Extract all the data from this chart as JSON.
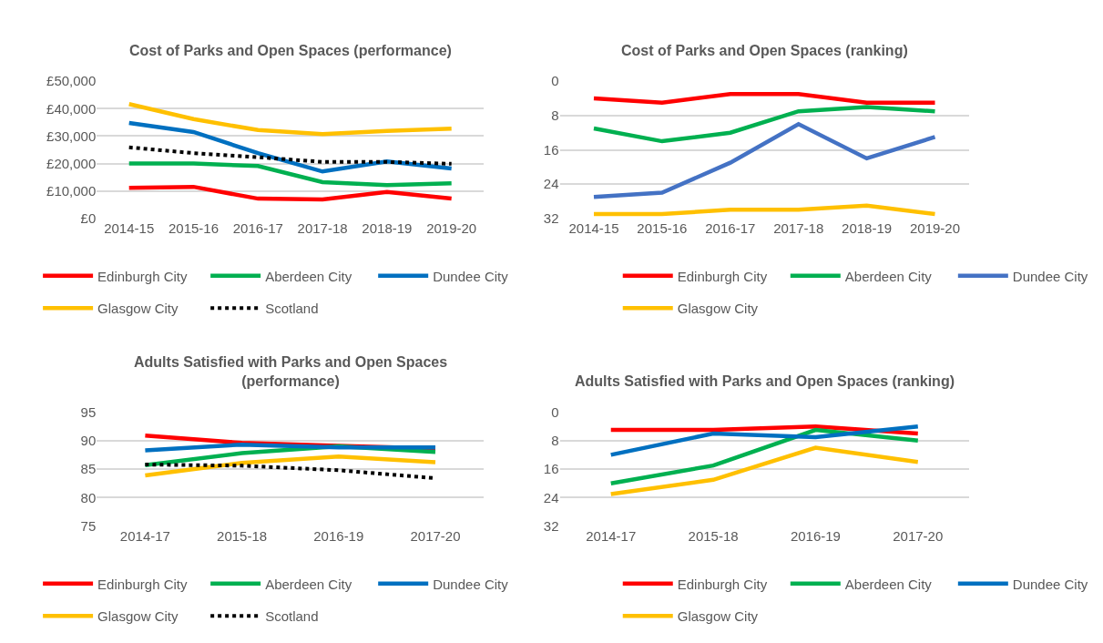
{
  "chart_data": [
    {
      "type": "line",
      "title": "Cost of Parks and Open Spaces (performance)",
      "categories": [
        "2014-15",
        "2015-16",
        "2016-17",
        "2017-18",
        "2018-19",
        "2019-20"
      ],
      "ylim": [
        0,
        50000
      ],
      "yticks": [
        {
          "value": 0,
          "label": "£0"
        },
        {
          "value": 10000,
          "label": "£10,000"
        },
        {
          "value": 20000,
          "label": "£20,000"
        },
        {
          "value": 30000,
          "label": "£30,000"
        },
        {
          "value": 40000,
          "label": "£40,000"
        },
        {
          "value": 50000,
          "label": "£50,000"
        }
      ],
      "grid": "y",
      "legend": "bottom",
      "series": [
        {
          "name": "Edinburgh City",
          "color": "#ff0000",
          "values": [
            11100,
            11500,
            7200,
            6900,
            9600,
            7200
          ]
        },
        {
          "name": "Aberdeen City",
          "color": "#00b050",
          "values": [
            20000,
            20000,
            19100,
            13200,
            12100,
            12800
          ]
        },
        {
          "name": "Dundee City",
          "color": "#0070c0",
          "values": [
            34800,
            31500,
            23800,
            17100,
            20800,
            18200
          ]
        },
        {
          "name": "Glasgow City",
          "color": "#ffc000",
          "values": [
            41700,
            36200,
            32200,
            30700,
            31900,
            32700
          ]
        },
        {
          "name": "Scotland",
          "color": "#000000",
          "line_style": "dotted",
          "values": [
            25900,
            23800,
            22300,
            20600,
            20600,
            19900
          ]
        }
      ]
    },
    {
      "type": "line",
      "title": "Cost of Parks and Open Spaces (ranking)",
      "categories": [
        "2014-15",
        "2015-16",
        "2016-17",
        "2017-18",
        "2018-19",
        "2019-20"
      ],
      "ylim": [
        32,
        0
      ],
      "yticks": [
        0,
        8,
        16,
        24,
        32
      ],
      "grid": "y",
      "legend": "bottom",
      "series": [
        {
          "name": "Edinburgh City",
          "color": "#ff0000",
          "values": [
            4,
            5,
            3,
            3,
            5,
            5
          ]
        },
        {
          "name": "Aberdeen City",
          "color": "#00b050",
          "values": [
            11,
            14,
            12,
            7,
            6,
            7
          ]
        },
        {
          "name": "Dundee City",
          "color": "#4472c4",
          "values": [
            27,
            26,
            19,
            10,
            18,
            13
          ]
        },
        {
          "name": "Glasgow City",
          "color": "#ffc000",
          "values": [
            31,
            31,
            30,
            30,
            29,
            31
          ]
        }
      ]
    },
    {
      "type": "line",
      "title": "Adults Satisfied with Parks and Open Spaces (performance)",
      "categories": [
        "2014-17",
        "2015-18",
        "2016-19",
        "2017-20"
      ],
      "ylim": [
        75,
        95
      ],
      "yticks": [
        75,
        80,
        85,
        90,
        95
      ],
      "grid": "y",
      "legend": "bottom",
      "series": [
        {
          "name": "Edinburgh City",
          "color": "#ff0000",
          "values": [
            90.9,
            89.6,
            89.1,
            88.6
          ]
        },
        {
          "name": "Aberdeen City",
          "color": "#00b050",
          "values": [
            85.7,
            87.8,
            89.0,
            88.0
          ]
        },
        {
          "name": "Dundee City",
          "color": "#0070c0",
          "values": [
            88.3,
            89.3,
            88.8,
            88.8
          ]
        },
        {
          "name": "Glasgow City",
          "color": "#ffc000",
          "values": [
            83.9,
            86.1,
            87.2,
            86.2
          ]
        },
        {
          "name": "Scotland",
          "color": "#000000",
          "line_style": "dotted",
          "values": [
            85.8,
            85.6,
            84.8,
            83.4
          ]
        }
      ]
    },
    {
      "type": "line",
      "title": "Adults Satisfied with Parks and Open Spaces (ranking)",
      "categories": [
        "2014-17",
        "2015-18",
        "2016-19",
        "2017-20"
      ],
      "ylim": [
        32,
        0
      ],
      "yticks": [
        0,
        8,
        16,
        24,
        32
      ],
      "grid": "y",
      "legend": "bottom",
      "series": [
        {
          "name": "Edinburgh City",
          "color": "#ff0000",
          "values": [
            5,
            5,
            4,
            6
          ]
        },
        {
          "name": "Aberdeen City",
          "color": "#00b050",
          "values": [
            20,
            15,
            5,
            8
          ]
        },
        {
          "name": "Dundee City",
          "color": "#0070c0",
          "values": [
            12,
            6,
            7,
            4
          ]
        },
        {
          "name": "Glasgow City",
          "color": "#ffc000",
          "values": [
            23,
            19,
            10,
            14
          ]
        }
      ]
    }
  ]
}
